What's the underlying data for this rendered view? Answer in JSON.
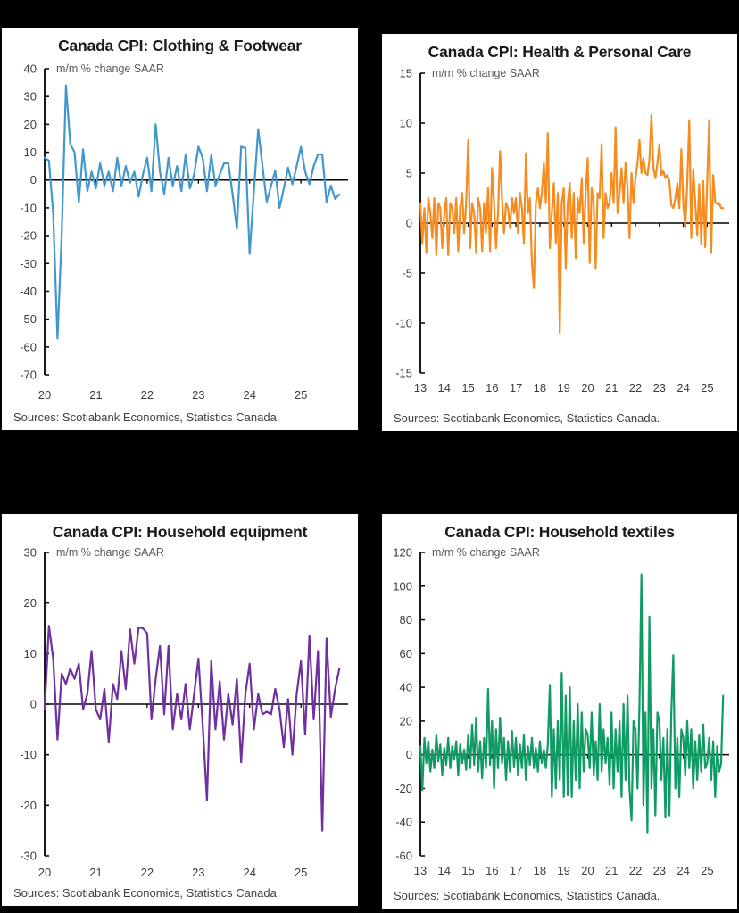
{
  "page": {
    "background_color": "#000000"
  },
  "chart_data": [
    {
      "type": "line",
      "title": "Canada CPI: Clothing & Footwear",
      "subtitle": "m/m % change SAAR",
      "source": "Sources: Scotiabank Economics, Statistics Canada.",
      "color": "#4298CC",
      "ylim": [
        -70,
        40
      ],
      "yticks": [
        40,
        30,
        20,
        10,
        0,
        -10,
        -20,
        -30,
        -40,
        -50,
        -60,
        -70
      ],
      "xlim": [
        2020,
        2025.92
      ],
      "xlabels": [
        "20",
        "21",
        "22",
        "23",
        "24",
        "25"
      ],
      "xtick_years": [
        2020,
        2021,
        2022,
        2023,
        2024,
        2025
      ],
      "x_start": 2020,
      "x_step_months": 1,
      "grid": false,
      "legend": "none",
      "values": [
        8,
        7,
        -12,
        -57,
        -20,
        34,
        13,
        10,
        -8,
        11,
        -4,
        3,
        -3,
        6,
        -2,
        3,
        -4,
        8,
        -2,
        5,
        -1,
        3,
        -6,
        2,
        8,
        -4,
        20,
        3,
        -5,
        8,
        -2,
        5,
        -4,
        9,
        -3,
        2,
        12,
        8,
        -4,
        9,
        -2,
        2,
        6,
        6,
        -5,
        -17.5,
        12,
        11.5,
        -26.5,
        -4,
        18.3,
        5,
        -7.9,
        -2,
        3.3,
        -10,
        -3,
        4.4,
        -1.5,
        5,
        11.9,
        3,
        -1.5,
        5,
        9.2,
        9.2,
        -7.9,
        -2,
        -6.8,
        -5.2
      ]
    },
    {
      "type": "line",
      "title": "Canada CPI: Health & Personal Care",
      "subtitle": "m/m % change SAAR",
      "source": "Sources: Scotiabank Economics, Statistics Canada.",
      "color": "#F68B1F",
      "ylim": [
        -15,
        15
      ],
      "yticks": [
        15,
        10,
        5,
        0,
        -5,
        -10,
        -15
      ],
      "xlim": [
        2013,
        2025.92
      ],
      "xlabels": [
        "13",
        "14",
        "15",
        "16",
        "17",
        "18",
        "19",
        "20",
        "21",
        "22",
        "23",
        "24",
        "25"
      ],
      "xtick_years": [
        2013,
        2014,
        2015,
        2016,
        2017,
        2018,
        2019,
        2020,
        2021,
        2022,
        2023,
        2024,
        2025
      ],
      "x_start": 2013,
      "x_step_months": 1,
      "grid": false,
      "legend": "none",
      "values": [
        2,
        -2,
        1.5,
        -3,
        2.5,
        1,
        -1.5,
        2.5,
        -3.2,
        2,
        1.5,
        -2.5,
        1,
        2.5,
        -3.2,
        2,
        1.5,
        -1,
        2.5,
        -2.8,
        1.5,
        3,
        -1,
        2,
        8.3,
        -2.5,
        2,
        1,
        -3,
        2.5,
        1.5,
        -2.8,
        2,
        -1,
        3.5,
        -2.8,
        5.5,
        2,
        -2.5,
        1,
        7.2,
        2.5,
        -1,
        2,
        1.5,
        -0.5,
        2.5,
        1,
        2.5,
        -1,
        3,
        1.5,
        -2,
        7,
        1,
        2.5,
        -4,
        -6.5,
        2,
        3.5,
        1.5,
        3,
        6,
        2,
        9,
        -2.5,
        1,
        4,
        -2,
        3,
        -11,
        2,
        3.5,
        -4.5,
        2,
        4,
        -1.5,
        3,
        -3.5,
        2.5,
        1,
        4.5,
        -2,
        3,
        6.5,
        -4,
        3.5,
        2,
        -4.5,
        3,
        2.5,
        7.9,
        -1.5,
        3,
        1.5,
        2,
        5,
        2,
        9.6,
        1,
        3,
        5.5,
        2,
        6,
        3.5,
        -1.5,
        5,
        2,
        4.5,
        6,
        8.3,
        5,
        6.5,
        5,
        4.8,
        6.3,
        10.8,
        5.5,
        4.5,
        6,
        7.9,
        4.8,
        5.2,
        4.5,
        4.8,
        4.2,
        1.8,
        1.5,
        2.5,
        4,
        1.5,
        7.4,
        2,
        -0.5,
        4,
        10.3,
        -1.5,
        5.4,
        2,
        -1.2,
        3.9,
        -2.1,
        4.2,
        -2.4,
        4.2,
        10.3,
        -3,
        4.8,
        2.1,
        1.9,
        2,
        1.5,
        1.5
      ]
    },
    {
      "type": "line",
      "title": "Canada CPI: Household equipment",
      "subtitle": "m/m % change SAAR",
      "source": "Sources: Scotiabank Economics, Statistics Canada.",
      "color": "#7030A0",
      "ylim": [
        -30,
        30
      ],
      "yticks": [
        30,
        20,
        10,
        0,
        -10,
        -20,
        -30
      ],
      "xlim": [
        2020,
        2025.92
      ],
      "xlabels": [
        "20",
        "21",
        "22",
        "23",
        "24",
        "25"
      ],
      "xtick_years": [
        2020,
        2021,
        2022,
        2023,
        2024,
        2025
      ],
      "x_start": 2020,
      "x_step_months": 1,
      "grid": false,
      "legend": "none",
      "values": [
        -1,
        15.5,
        9,
        -7,
        6,
        4,
        7,
        5,
        8,
        -1,
        2,
        10.5,
        -1,
        -3,
        3,
        -7.5,
        4,
        1,
        10.5,
        3,
        14.8,
        8,
        15.2,
        15,
        14,
        -3,
        5,
        11.5,
        -2,
        11.5,
        -5,
        2,
        -3,
        4,
        -5,
        2,
        9,
        -4,
        -19,
        8.5,
        -5,
        4.5,
        -7,
        2,
        -4,
        5,
        -11.5,
        2,
        8,
        -5,
        2,
        -2,
        -1.5,
        -2,
        3,
        -1,
        -8.5,
        1,
        -10,
        2,
        8.5,
        -6,
        13.5,
        -3,
        10.5,
        -25,
        13,
        -2.5,
        3,
        7
      ]
    },
    {
      "type": "line",
      "title": "Canada CPI: Household textiles",
      "subtitle": "m/m % change SAAR",
      "source": "Sources: Scotiabank Economics, Statistics Canada.",
      "color": "#109A64",
      "ylim": [
        -60,
        120
      ],
      "yticks": [
        120,
        100,
        80,
        60,
        40,
        20,
        0,
        -20,
        -40,
        -60
      ],
      "xlim": [
        2013,
        2025.92
      ],
      "xlabels": [
        "13",
        "14",
        "15",
        "16",
        "17",
        "18",
        "19",
        "20",
        "21",
        "22",
        "23",
        "24",
        "25"
      ],
      "xtick_years": [
        2013,
        2014,
        2015,
        2016,
        2017,
        2018,
        2019,
        2020,
        2021,
        2022,
        2023,
        2024,
        2025
      ],
      "x_start": 2013,
      "x_step_months": 1,
      "grid": false,
      "legend": "none",
      "values": [
        5,
        -21,
        10,
        -5,
        8,
        -10,
        3,
        -8,
        12,
        -4,
        6,
        -12,
        4,
        -6,
        10,
        -8,
        5,
        -3,
        8,
        -12,
        6,
        -5,
        3,
        -9,
        12,
        -8,
        18,
        -6,
        22,
        -10,
        8,
        -14,
        10,
        -8,
        39,
        -6,
        20,
        -20,
        15,
        -8,
        22,
        -5,
        10,
        -15,
        8,
        -10,
        14,
        -7,
        10,
        -12,
        6,
        -8,
        12,
        -15,
        5,
        -6,
        10,
        -8,
        4,
        -10,
        8,
        -5,
        3,
        -8,
        6,
        41.5,
        -25,
        15,
        -20,
        20,
        -15,
        48.5,
        -25,
        35,
        -24,
        40,
        -25,
        20,
        -15,
        30,
        -20,
        25,
        -10,
        15,
        12,
        -8,
        25,
        -12,
        8,
        -15,
        30,
        -10,
        15,
        -5,
        10,
        -18,
        25,
        -20,
        15,
        -10,
        20,
        -25,
        30,
        -15,
        35,
        -20,
        -39,
        20,
        15,
        -20,
        30,
        107,
        -30,
        25,
        -46,
        82,
        -20,
        15,
        -36,
        25,
        20,
        -15,
        10,
        -37,
        15,
        -36,
        25,
        59,
        -20,
        10,
        -25,
        15,
        10,
        -12,
        20,
        -8,
        15,
        -20,
        8,
        -15,
        12,
        -10,
        18,
        -8,
        -5,
        10,
        -15,
        8,
        -25,
        5,
        -10,
        -5,
        35
      ]
    }
  ]
}
